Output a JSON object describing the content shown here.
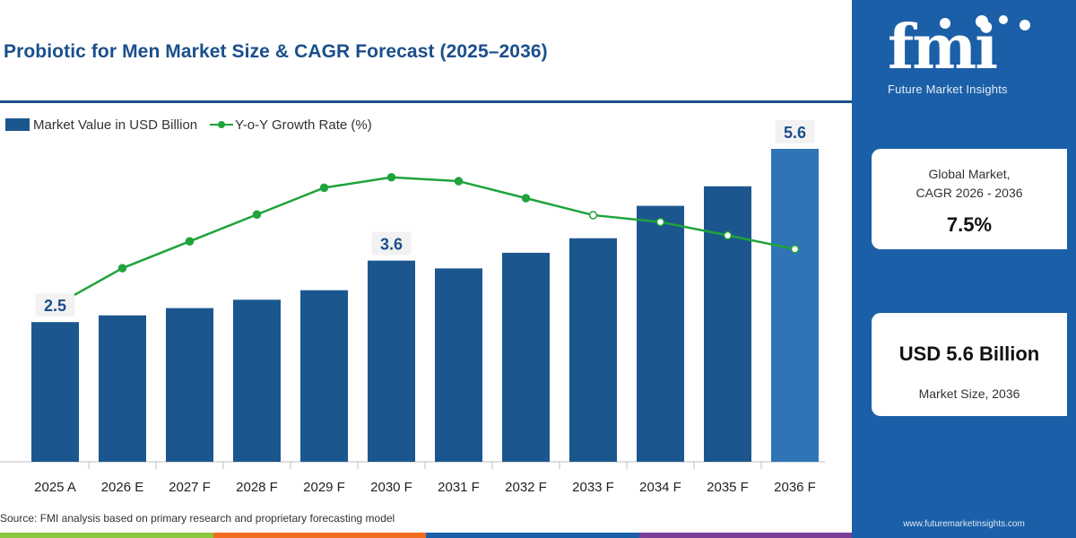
{
  "header": {
    "title": "Probiotic for Men Market Size & CAGR Forecast (2025–2036)"
  },
  "legend": {
    "bar_label": "Market Value in USD Billion",
    "line_label": "Y-o-Y Growth Rate (%)"
  },
  "chart_data": {
    "type": "bar",
    "title": "Probiotic for Men Market Size & CAGR Forecast (2025–2036)",
    "xlabel": "",
    "ylabel": "",
    "categories": [
      "2025 A",
      "2026 E",
      "2027 F",
      "2028 F",
      "2029 F",
      "2030 F",
      "2031 F",
      "2032 F",
      "2033 F",
      "2034 F",
      "2035 F",
      "2036 F"
    ],
    "series": [
      {
        "name": "Market Value in USD Billion",
        "type": "bar",
        "values": [
          2.5,
          2.62,
          2.75,
          2.9,
          3.07,
          3.6,
          3.46,
          3.74,
          4.0,
          4.58,
          4.93,
          5.6
        ],
        "color": "#1b578e",
        "highlight_color": "#2f75b5"
      },
      {
        "name": "Y-o-Y Growth Rate (%)",
        "type": "line",
        "values": [
          5.6,
          6.5,
          7.4,
          8.3,
          9.2,
          9.55,
          9.42,
          8.85,
          8.28,
          8.05,
          7.6,
          7.14
        ],
        "color": "#1fa33b"
      }
    ],
    "data_labels": [
      {
        "category": "2025 A",
        "text": "2.5"
      },
      {
        "category": "2030 F",
        "text": "3.6"
      },
      {
        "category": "2036 F",
        "text": "5.6"
      }
    ],
    "ylim": [
      0,
      6
    ],
    "line_ylim": [
      0,
      12
    ],
    "grid": false,
    "legend_position": "top-left"
  },
  "footer": {
    "source": "Source: FMI analysis based on primary research and proprietary forecasting model",
    "bar_colors": [
      "#8dc63f",
      "#f26c22",
      "#1b5fa8",
      "#7b3f98"
    ]
  },
  "sidebar": {
    "logo_text": "fmi",
    "brand": "Future Market Insights",
    "cagr_label_1": "Global Market,",
    "cagr_label_2": "CAGR 2026 - 2036",
    "cagr_value": "7.5%",
    "size_value": "USD 5.6 Billion",
    "size_label": "Market Size, 2036",
    "url": "www.futuremarketinsights.com",
    "colors": {
      "panel": "#1b5fa8",
      "accent": "#1b578e"
    }
  }
}
